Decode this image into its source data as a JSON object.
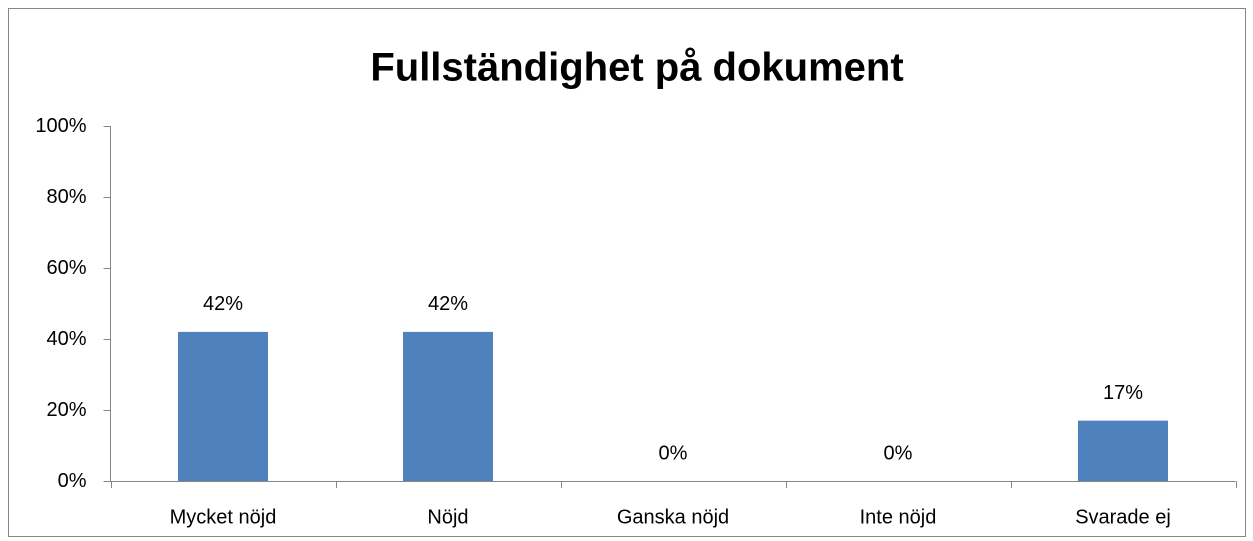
{
  "chart_data": {
    "type": "bar",
    "title": "Fullständighet på dokument",
    "categories": [
      "Mycket nöjd",
      "Nöjd",
      "Ganska nöjd",
      "Inte nöjd",
      "Svarade ej"
    ],
    "values": [
      42,
      42,
      0,
      0,
      17
    ],
    "value_labels": [
      "42%",
      "42%",
      "0%",
      "0%",
      "17%"
    ],
    "color": "#4f81bd",
    "ylim": [
      0,
      100
    ],
    "yticks": [
      {
        "value": 0,
        "label": "0%"
      },
      {
        "value": 20,
        "label": "20%"
      },
      {
        "value": 40,
        "label": "40%"
      },
      {
        "value": 60,
        "label": "60%"
      },
      {
        "value": 80,
        "label": "80%"
      },
      {
        "value": 100,
        "label": "100%"
      }
    ],
    "grid": false
  }
}
